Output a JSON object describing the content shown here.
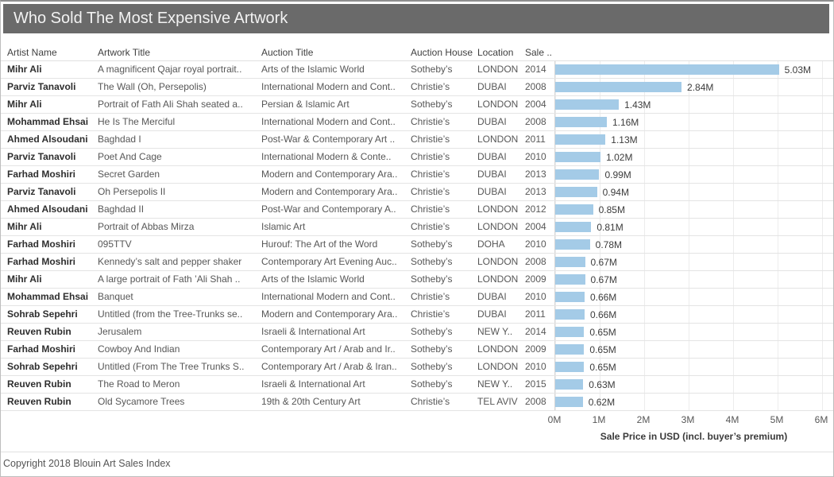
{
  "header": {
    "title": "Who Sold The Most Expensive Artwork"
  },
  "table": {
    "columns": [
      "Artist Name",
      "Artwork Title",
      "Auction Title",
      "Auction House",
      "Location",
      "Sale .."
    ],
    "rows": [
      {
        "artist": "Mihr Ali",
        "artwork": "A magnificent Qajar royal portrait..",
        "auction": "Arts of the Islamic World",
        "house": "Sotheby’s",
        "location": "LONDON",
        "year": "2014",
        "value": 5.03,
        "label": "5.03M"
      },
      {
        "artist": "Parviz Tanavoli",
        "artwork": "The Wall (Oh, Persepolis)",
        "auction": "International Modern and Cont..",
        "house": "Christie’s",
        "location": "DUBAI",
        "year": "2008",
        "value": 2.84,
        "label": "2.84M"
      },
      {
        "artist": "Mihr Ali",
        "artwork": "Portrait of Fath Ali Shah seated a..",
        "auction": "Persian & Islamic Art",
        "house": "Sotheby’s",
        "location": "LONDON",
        "year": "2004",
        "value": 1.43,
        "label": "1.43M"
      },
      {
        "artist": "Mohammad Ehsai",
        "artwork": "He Is The Merciful",
        "auction": "International Modern and Cont..",
        "house": "Christie’s",
        "location": "DUBAI",
        "year": "2008",
        "value": 1.16,
        "label": "1.16M"
      },
      {
        "artist": "Ahmed Alsoudani",
        "artwork": "Baghdad I",
        "auction": "Post-War & Contemporary Art ..",
        "house": "Christie’s",
        "location": "LONDON",
        "year": "2011",
        "value": 1.13,
        "label": "1.13M"
      },
      {
        "artist": "Parviz Tanavoli",
        "artwork": "Poet And Cage",
        "auction": "International Modern & Conte..",
        "house": "Christie’s",
        "location": "DUBAI",
        "year": "2010",
        "value": 1.02,
        "label": "1.02M"
      },
      {
        "artist": "Farhad Moshiri",
        "artwork": "Secret Garden",
        "auction": "Modern and Contemporary Ara..",
        "house": "Christie’s",
        "location": "DUBAI",
        "year": "2013",
        "value": 0.99,
        "label": "0.99M"
      },
      {
        "artist": "Parviz Tanavoli",
        "artwork": "Oh Persepolis II",
        "auction": "Modern and Contemporary Ara..",
        "house": "Christie’s",
        "location": "DUBAI",
        "year": "2013",
        "value": 0.94,
        "label": "0.94M"
      },
      {
        "artist": "Ahmed Alsoudani",
        "artwork": "Baghdad II",
        "auction": "Post-War and Contemporary A..",
        "house": "Christie’s",
        "location": "LONDON",
        "year": "2012",
        "value": 0.85,
        "label": "0.85M"
      },
      {
        "artist": "Mihr Ali",
        "artwork": "Portrait of Abbas Mirza",
        "auction": "Islamic Art",
        "house": "Christie’s",
        "location": "LONDON",
        "year": "2004",
        "value": 0.81,
        "label": "0.81M"
      },
      {
        "artist": "Farhad Moshiri",
        "artwork": "095TTV",
        "auction": "Hurouf: The Art of the Word",
        "house": "Sotheby’s",
        "location": "DOHA",
        "year": "2010",
        "value": 0.78,
        "label": "0.78M"
      },
      {
        "artist": "Farhad Moshiri",
        "artwork": "Kennedy’s salt and pepper shaker",
        "auction": "Contemporary Art Evening Auc..",
        "house": "Sotheby’s",
        "location": "LONDON",
        "year": "2008",
        "value": 0.67,
        "label": "0.67M"
      },
      {
        "artist": "Mihr Ali",
        "artwork": "A large portrait of Fath ’Ali Shah ..",
        "auction": "Arts of the Islamic World",
        "house": "Sotheby’s",
        "location": "LONDON",
        "year": "2009",
        "value": 0.67,
        "label": "0.67M"
      },
      {
        "artist": "Mohammad Ehsai",
        "artwork": "Banquet",
        "auction": "International Modern and Cont..",
        "house": "Christie’s",
        "location": "DUBAI",
        "year": "2010",
        "value": 0.66,
        "label": "0.66M"
      },
      {
        "artist": "Sohrab Sepehri",
        "artwork": "Untitled (from the Tree-Trunks se..",
        "auction": "Modern and Contemporary Ara..",
        "house": "Christie’s",
        "location": "DUBAI",
        "year": "2011",
        "value": 0.66,
        "label": "0.66M"
      },
      {
        "artist": "Reuven Rubin",
        "artwork": "Jerusalem",
        "auction": "Israeli & International Art",
        "house": "Sotheby’s",
        "location": "NEW Y..",
        "year": "2014",
        "value": 0.65,
        "label": "0.65M"
      },
      {
        "artist": "Farhad Moshiri",
        "artwork": "Cowboy And Indian",
        "auction": "Contemporary Art / Arab and Ir..",
        "house": "Sotheby’s",
        "location": "LONDON",
        "year": "2009",
        "value": 0.65,
        "label": "0.65M"
      },
      {
        "artist": "Sohrab Sepehri",
        "artwork": "Untitled (From The Tree Trunks S..",
        "auction": "Contemporary Art / Arab & Iran..",
        "house": "Sotheby’s",
        "location": "LONDON",
        "year": "2010",
        "value": 0.65,
        "label": "0.65M"
      },
      {
        "artist": "Reuven Rubin",
        "artwork": "The Road to Meron",
        "auction": "Israeli & International Art",
        "house": "Sotheby’s",
        "location": "NEW Y..",
        "year": "2015",
        "value": 0.63,
        "label": "0.63M"
      },
      {
        "artist": "Reuven Rubin",
        "artwork": "Old Sycamore Trees",
        "auction": "19th & 20th Century Art",
        "house": "Christie’s",
        "location": "TEL AVIV",
        "year": "2008",
        "value": 0.62,
        "label": "0.62M"
      }
    ]
  },
  "chart_data": {
    "type": "bar",
    "orientation": "horizontal",
    "title": "Who Sold The Most Expensive Artwork",
    "xlabel": "Sale Price in USD (incl. buyer’s premium)",
    "x_ticks": [
      "0M",
      "1M",
      "2M",
      "3M",
      "4M",
      "5M",
      "6M"
    ],
    "xlim_millions": [
      0,
      6
    ],
    "grid": true,
    "legend": "none",
    "bar_color": "#a4cbe7",
    "categories": [
      "A magnificent Qajar royal portrait..",
      "The Wall (Oh, Persepolis)",
      "Portrait of Fath Ali Shah seated a..",
      "He Is The Merciful",
      "Baghdad I",
      "Poet And Cage",
      "Secret Garden",
      "Oh Persepolis II",
      "Baghdad II",
      "Portrait of Abbas Mirza",
      "095TTV",
      "Kennedy’s salt and pepper shaker",
      "A large portrait of Fath ’Ali Shah ..",
      "Banquet",
      "Untitled (from the Tree-Trunks se..",
      "Jerusalem",
      "Cowboy And Indian",
      "Untitled (From The Tree Trunks S..",
      "The Road to Meron",
      "Old Sycamore Trees"
    ],
    "values_millions": [
      5.03,
      2.84,
      1.43,
      1.16,
      1.13,
      1.02,
      0.99,
      0.94,
      0.85,
      0.81,
      0.78,
      0.67,
      0.67,
      0.66,
      0.66,
      0.65,
      0.65,
      0.65,
      0.63,
      0.62
    ],
    "bar_labels": [
      "5.03M",
      "2.84M",
      "1.43M",
      "1.16M",
      "1.13M",
      "1.02M",
      "0.99M",
      "0.94M",
      "0.85M",
      "0.81M",
      "0.78M",
      "0.67M",
      "0.67M",
      "0.66M",
      "0.66M",
      "0.65M",
      "0.65M",
      "0.65M",
      "0.63M",
      "0.62M"
    ]
  },
  "footer": {
    "copyright": "Copyright 2018 Blouin Art Sales Index"
  }
}
